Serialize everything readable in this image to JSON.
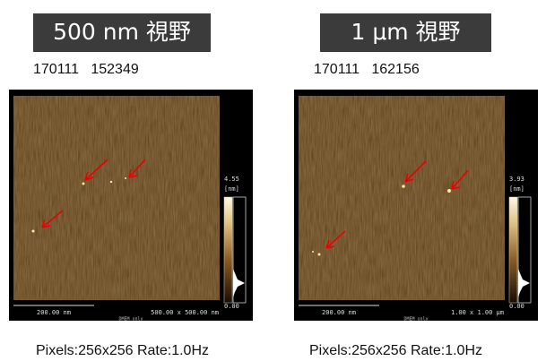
{
  "panels": [
    {
      "title": "500 nm 視野",
      "id": "170111   152349",
      "scale_bar": "200.00 nm",
      "scan_size": "500.00 x 500.00 nm",
      "note": "DMEM only",
      "colorbar": {
        "max": "4.55",
        "unit": "[nm]",
        "min": "0.00"
      },
      "footer": "Pixels:256x256 Rate:1.0Hz"
    },
    {
      "title": "1 μm 視野",
      "id": "170111   162156",
      "scale_bar": "200.00 nm",
      "scan_size": "1.00 x 1.00 µm",
      "note": "DMEM only",
      "colorbar": {
        "max": "3.93",
        "unit": "[nm]",
        "min": "0.00"
      },
      "footer": "Pixels:256x256 Rate:1.0Hz"
    }
  ]
}
